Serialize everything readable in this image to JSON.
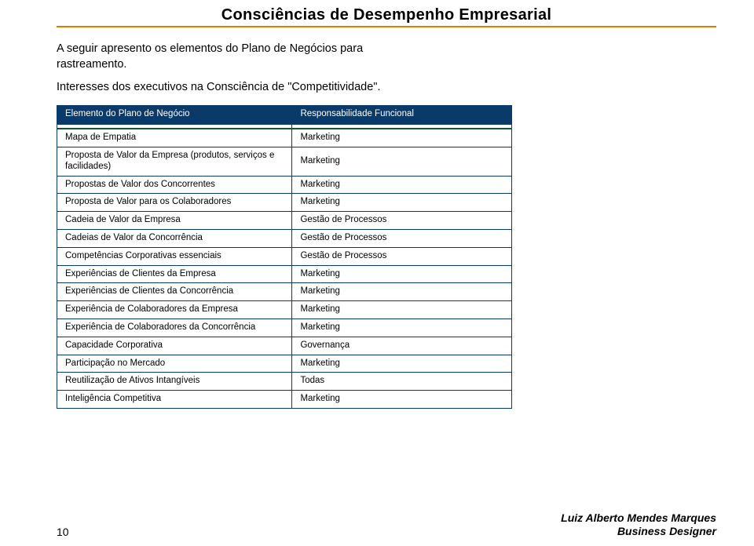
{
  "header": {
    "title": "Consciências de Desempenho Empresarial"
  },
  "intro": {
    "p1": "A seguir apresento os elementos do Plano de Negócios para rastreamento.",
    "p2": "Interesses dos executivos na Consciência de \"Competitividade\"."
  },
  "table": {
    "header_left": "Elemento do Plano de Negócio",
    "header_right": "Responsabilidade Funcional",
    "rows": [
      {
        "l": "Mapa de Empatia",
        "r": "Marketing"
      },
      {
        "l": "Proposta de Valor da Empresa (produtos, serviços e facilidades)",
        "r": "Marketing",
        "tall": true
      },
      {
        "l": "Propostas de Valor dos Concorrentes",
        "r": "Marketing"
      },
      {
        "l": "Proposta de Valor para os Colaboradores",
        "r": "Marketing"
      },
      {
        "l": "Cadeia de Valor da Empresa",
        "r": "Gestão de Processos"
      },
      {
        "l": "Cadeias de Valor da Concorrência",
        "r": "Gestão de Processos"
      },
      {
        "l": "Competências Corporativas essenciais",
        "r": "Gestão de Processos"
      },
      {
        "l": "Experiências de Clientes da Empresa",
        "r": "Marketing"
      },
      {
        "l": "Experiências de Clientes da Concorrência",
        "r": "Marketing"
      },
      {
        "l": "Experiência de Colaboradores da Empresa",
        "r": "Marketing"
      },
      {
        "l": "Experiência de Colaboradores da Concorrência",
        "r": "Marketing"
      },
      {
        "l": "Capacidade Corporativa",
        "r": "Governança"
      },
      {
        "l": "Participação no Mercado",
        "r": "Marketing"
      },
      {
        "l": "Reutilização de Ativos Intangíveis",
        "r": "Todas"
      },
      {
        "l": "Inteligência Competitiva",
        "r": "Marketing"
      }
    ],
    "colors": {
      "header_bg": "#0a3a6a",
      "header_text": "#ffffff",
      "border": "#0a3a6a",
      "gap_border": "#0d5a2c",
      "rule": "#e07b00"
    },
    "font": {
      "family": "Arial",
      "size_pt": 9
    }
  },
  "footer": {
    "page": "10",
    "author_line1": "Luiz Alberto Mendes Marques",
    "author_line2": "Business Designer"
  }
}
